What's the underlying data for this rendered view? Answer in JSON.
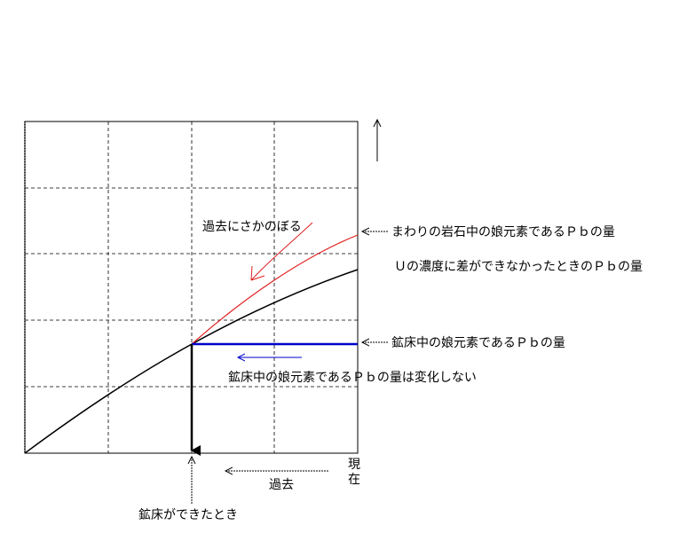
{
  "labels": {
    "go_back_in_time": "過去にさかのぼる",
    "surrounding_rock_pb": "まわりの岩石中の娘元素であるＰｂの量",
    "no_u_difference_pb": "Ｕの濃度に差ができなかったときのＰｂの量",
    "deposit_pb": "鉱床中の娘元素であるＰｂの量",
    "deposit_pb_unchanged": "鉱床中の娘元素であるＰｂの量は変化しない",
    "present_char1": "現",
    "present_char2": "在",
    "past": "過去",
    "deposit_formed": "鉱床ができたとき"
  },
  "colors": {
    "red_curve": "#e02020",
    "blue_line": "#0000cc",
    "axis": "#000000"
  }
}
